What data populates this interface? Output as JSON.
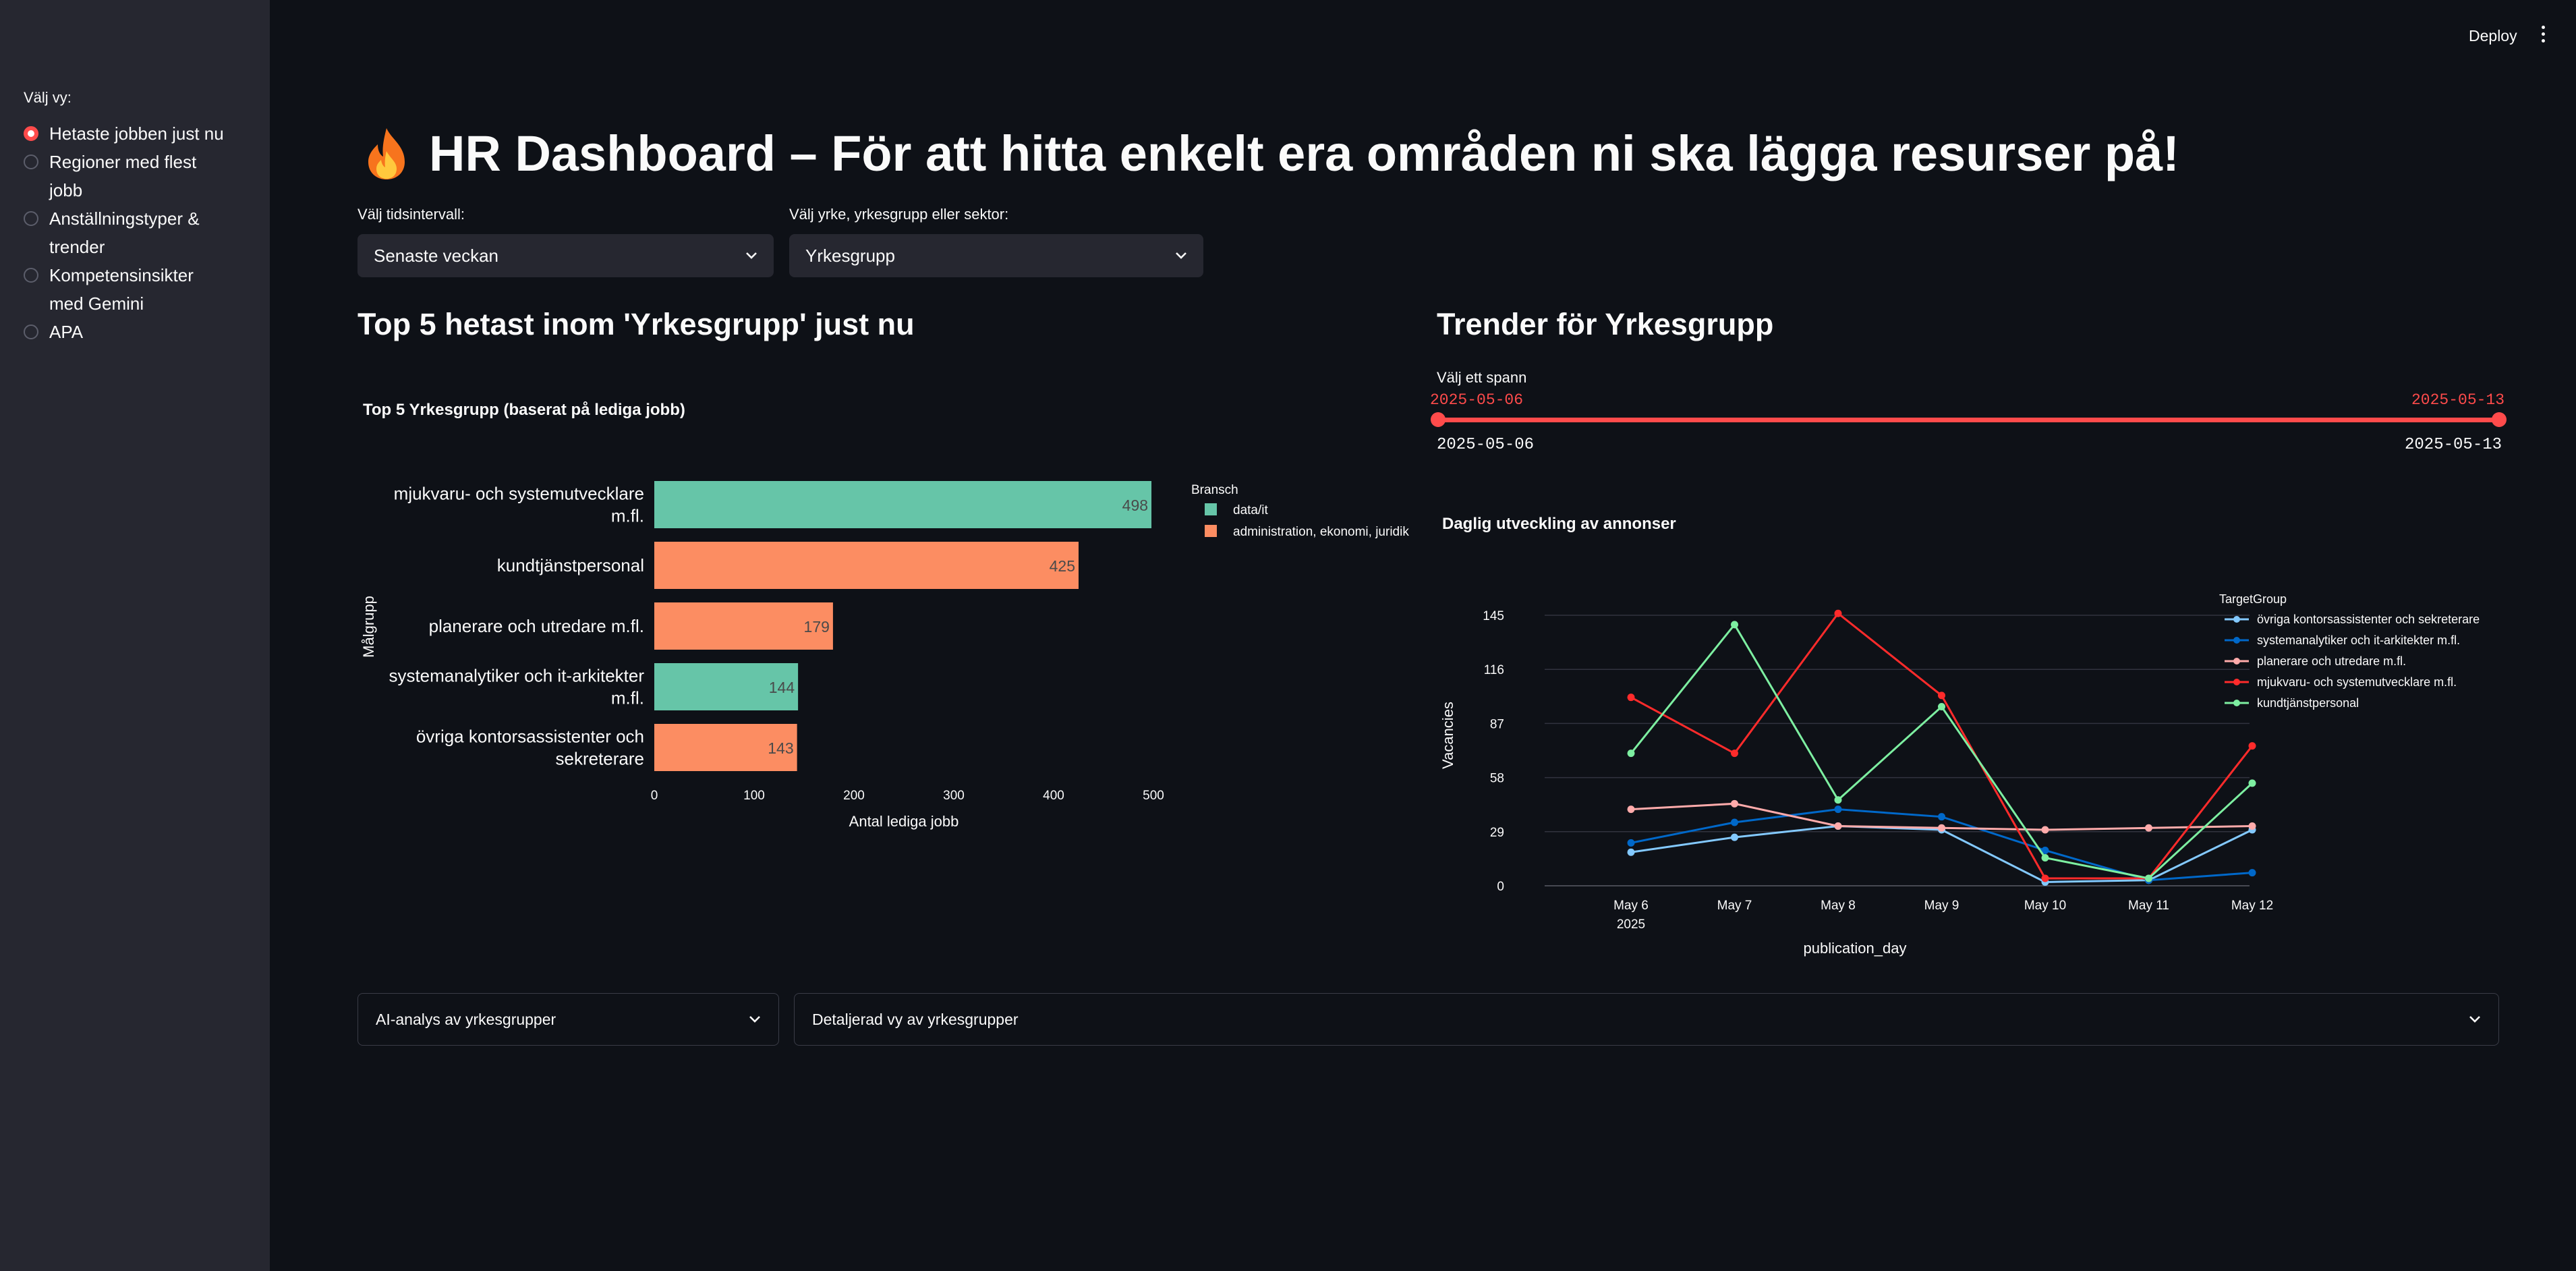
{
  "topbar": {
    "deploy_label": "Deploy",
    "menu_icon": "kebab-menu-icon"
  },
  "sidebar": {
    "label": "Välj vy:",
    "options": [
      {
        "lines": [
          "Hetaste jobben just nu"
        ],
        "selected": true
      },
      {
        "lines": [
          "Regioner med flest",
          "jobb"
        ],
        "selected": false
      },
      {
        "lines": [
          "Anställningstyper &",
          "trender"
        ],
        "selected": false
      },
      {
        "lines": [
          "Kompetensinsikter",
          "med Gemini"
        ],
        "selected": false
      },
      {
        "lines": [
          "APA"
        ],
        "selected": false
      }
    ]
  },
  "header": {
    "icon": "fire-icon",
    "title": "HR Dashboard – För att hitta enkelt era områden ni ska lägga resurser på!"
  },
  "filters": {
    "interval_label": "Välj tidsintervall:",
    "interval_value": "Senaste veckan",
    "category_label": "Välj yrke, yrkesgrupp eller sektor:",
    "category_value": "Yrkesgrupp"
  },
  "left": {
    "heading": "Top 5 hetast inom 'Yrkesgrupp' just nu"
  },
  "right": {
    "heading": "Trender för Yrkesgrupp",
    "slider_label": "Välj ett spann",
    "slider_start": "2025-05-06",
    "slider_end": "2025-05-13",
    "slider_min": "2025-05-06",
    "slider_max": "2025-05-13",
    "accent": "#ff4b4b"
  },
  "expanders": {
    "ai_label": "AI-analys av yrkesgrupper",
    "detail_label": "Detaljerad vy av yrkesgrupper"
  },
  "chart_data": [
    {
      "type": "bar",
      "orientation": "horizontal",
      "title": "Top 5 Yrkesgrupp (baserat på lediga jobb)",
      "xlabel": "Antal lediga jobb",
      "ylabel": "Målgrupp",
      "xlim": [
        0,
        500
      ],
      "xticks": [
        0,
        100,
        200,
        300,
        400,
        500
      ],
      "legend_title": "Bransch",
      "legend": [
        {
          "name": "data/it",
          "color": "#66c5a8"
        },
        {
          "name": "administration, ekonomi, juridik",
          "color": "#fc8d62"
        }
      ],
      "bars": [
        {
          "lines": [
            "mjukvaru- och systemutvecklare",
            "m.fl."
          ],
          "value": 498,
          "color": "#66c5a8"
        },
        {
          "lines": [
            "kundtjänstpersonal"
          ],
          "value": 425,
          "color": "#fc8d62"
        },
        {
          "lines": [
            "planerare och utredare m.fl."
          ],
          "value": 179,
          "color": "#fc8d62"
        },
        {
          "lines": [
            "systemanalytiker och it-arkitekter",
            "m.fl."
          ],
          "value": 144,
          "color": "#66c5a8"
        },
        {
          "lines": [
            "övriga kontorsassistenter och",
            "sekreterare"
          ],
          "value": 143,
          "color": "#fc8d62"
        }
      ]
    },
    {
      "type": "line",
      "title": "Daglig utveckling av annonser",
      "xlabel": "publication_day",
      "ylabel": "Vacancies",
      "ylim": [
        0,
        145
      ],
      "yticks": [
        0,
        29,
        58,
        87,
        116,
        145
      ],
      "categories": [
        "May 6",
        "May 7",
        "May 8",
        "May 9",
        "May 10",
        "May 11",
        "May 12"
      ],
      "year_label": "2025",
      "legend_title": "TargetGroup",
      "series": [
        {
          "name": "övriga kontorsassistenter och sekreterare",
          "color": "#83c9ff",
          "values": [
            18,
            26,
            32,
            30,
            2,
            3,
            30
          ]
        },
        {
          "name": "systemanalytiker och it-arkitekter m.fl.",
          "color": "#0068c9",
          "values": [
            23,
            34,
            41,
            37,
            19,
            3,
            7
          ]
        },
        {
          "name": "planerare och utredare m.fl.",
          "color": "#ffabab",
          "values": [
            41,
            44,
            32,
            31,
            30,
            31,
            32
          ]
        },
        {
          "name": "mjukvaru- och systemutvecklare m.fl.",
          "color": "#ff2b2b",
          "values": [
            101,
            71,
            146,
            102,
            4,
            4,
            75
          ]
        },
        {
          "name": "kundtjänstpersonal",
          "color": "#7defa1",
          "values": [
            71,
            140,
            46,
            96,
            15,
            4,
            55
          ]
        }
      ]
    }
  ]
}
